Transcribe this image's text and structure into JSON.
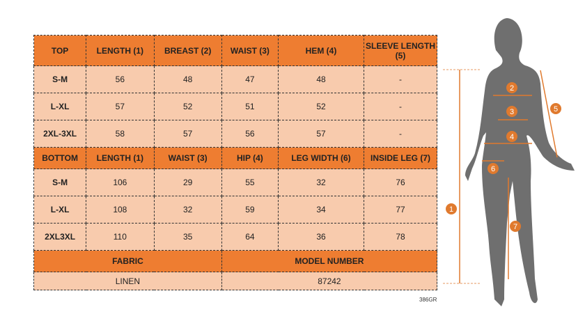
{
  "top": {
    "headers": [
      "TOP",
      "LENGTH (1)",
      "BREAST (2)",
      "WAIST (3)",
      "HEM (4)",
      "SLEEVE LENGTH (5)"
    ],
    "rows": [
      [
        "S-M",
        "56",
        "48",
        "47",
        "48",
        "-"
      ],
      [
        "L-XL",
        "57",
        "52",
        "51",
        "52",
        "-"
      ],
      [
        "2XL-3XL",
        "58",
        "57",
        "56",
        "57",
        "-"
      ]
    ]
  },
  "bottom": {
    "headers": [
      "BOTTOM",
      "LENGTH (1)",
      "WAIST (3)",
      "HIP (4)",
      "LEG WIDTH (6)",
      "INSIDE LEG (7)"
    ],
    "rows": [
      [
        "S-M",
        "106",
        "29",
        "55",
        "32",
        "76"
      ],
      [
        "L-XL",
        "108",
        "32",
        "59",
        "34",
        "77"
      ],
      [
        "2XL3XL",
        "110",
        "35",
        "64",
        "36",
        "78"
      ]
    ]
  },
  "info": {
    "fabric_label": "FABRIC",
    "model_label": "MODEL NUMBER",
    "fabric": "LINEN",
    "model": "87242"
  },
  "code": "386GR",
  "markers": [
    "1",
    "2",
    "3",
    "4",
    "5",
    "6",
    "7"
  ],
  "colors": {
    "header": "#ee7d31",
    "cell": "#f8cbad",
    "silhouette": "#6f6f6f"
  }
}
